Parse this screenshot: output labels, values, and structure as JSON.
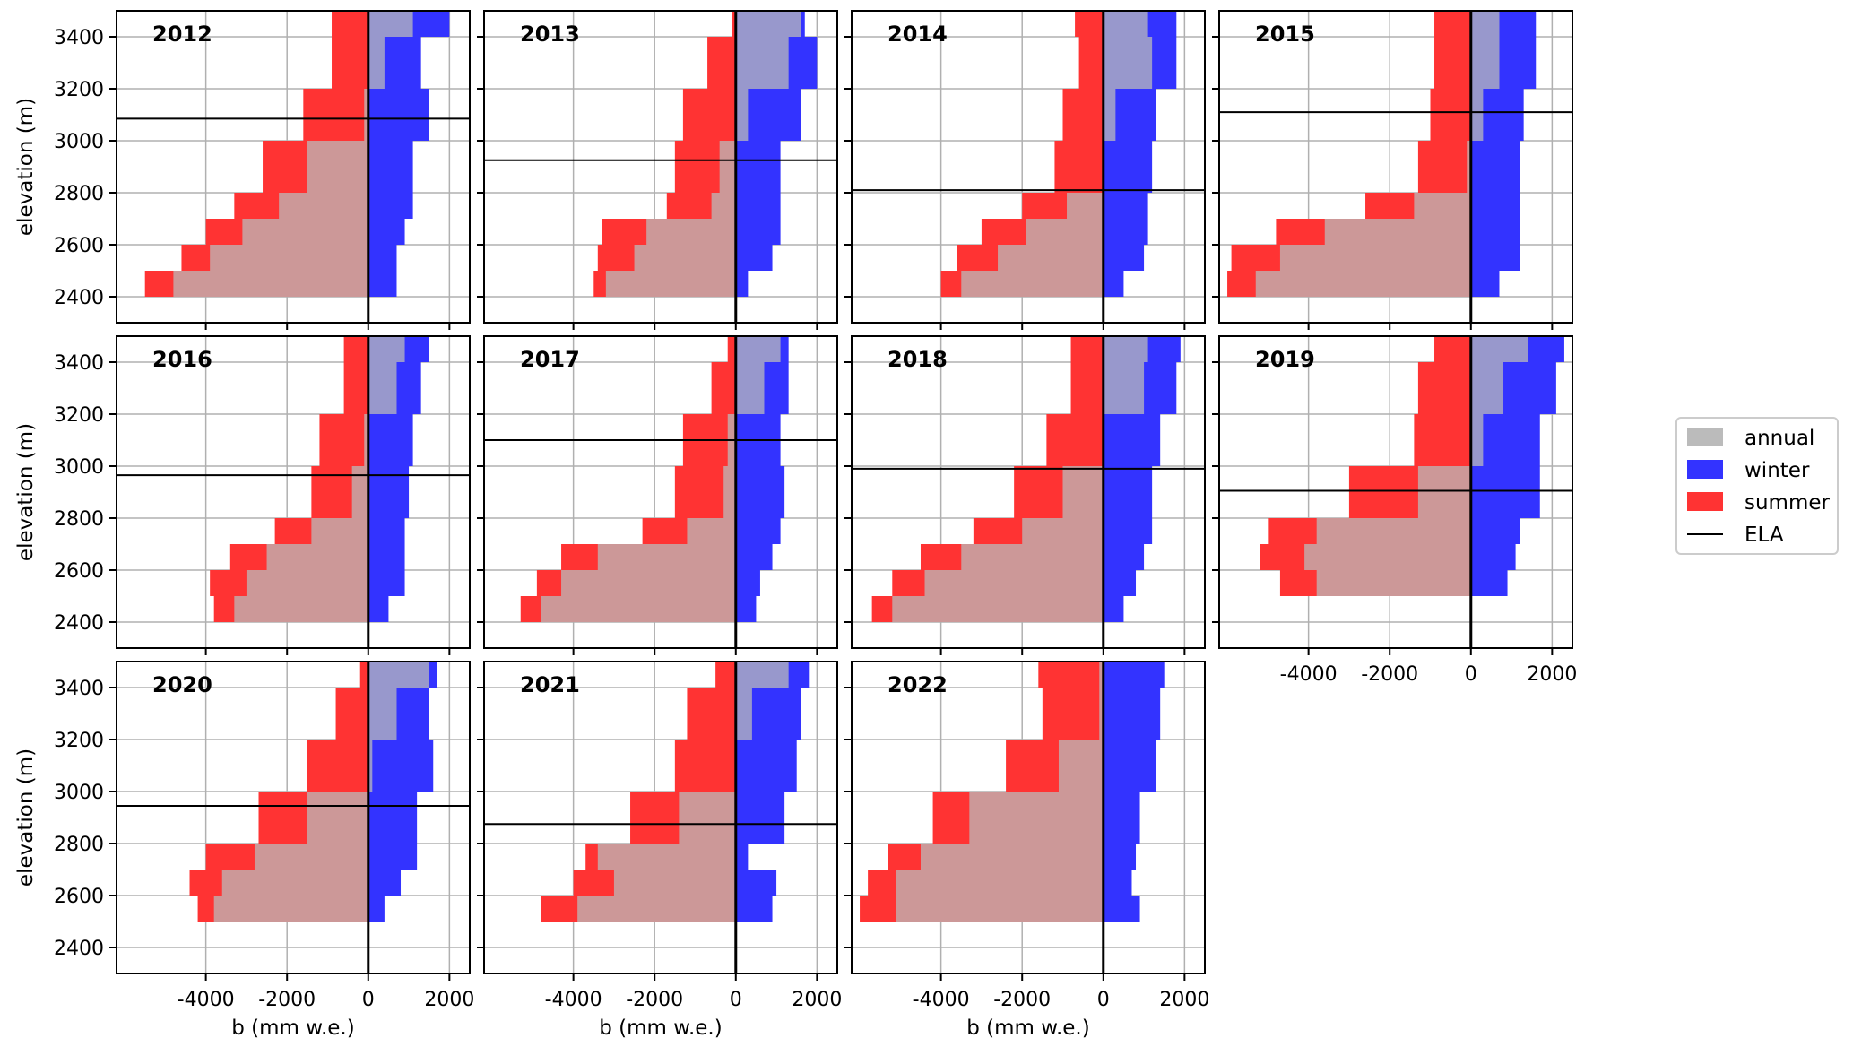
{
  "chart_data": {
    "type": "bar",
    "description_kind": "small multiples of horizontal bar profiles",
    "xlabel": "b (mm w.e.)",
    "ylabel": "elevation (m)",
    "xlim": [
      -6200,
      2500
    ],
    "ylim": [
      2300,
      3500
    ],
    "xticks": [
      -4000,
      -2000,
      0,
      2000
    ],
    "xtick_labels": [
      "-4000",
      "-2000",
      "0",
      "2000"
    ],
    "yticks": [
      2400,
      2600,
      2800,
      3000,
      3200,
      3400
    ],
    "ytick_labels": [
      "2400",
      "2600",
      "2800",
      "3000",
      "3200",
      "3400"
    ],
    "grid": true,
    "legend_position": "right-outside",
    "legend": [
      {
        "key": "annual",
        "label": "annual"
      },
      {
        "key": "winter",
        "label": "winter"
      },
      {
        "key": "summer",
        "label": "summer"
      },
      {
        "key": "ela",
        "label": "ELA"
      }
    ],
    "colors": {
      "summer": "#ff3333",
      "winter": "#3333ff",
      "annual": "#bbbbbb",
      "ela": "#000000"
    },
    "panels": [
      {
        "year": "2012",
        "ela": 3085,
        "elevations": [
          2400,
          2500,
          2600,
          2700,
          2800,
          3000,
          3200,
          3400
        ],
        "winter": [
          700,
          700,
          900,
          1100,
          1100,
          1500,
          1300,
          2000
        ],
        "summer": [
          -5500,
          -4600,
          -4000,
          -3300,
          -2600,
          -1600,
          -900,
          -900
        ]
      },
      {
        "year": "2013",
        "ela": 2925,
        "elevations": [
          2400,
          2500,
          2600,
          2700,
          2800,
          3000,
          3200,
          3400
        ],
        "winter": [
          300,
          900,
          1100,
          1100,
          1100,
          1600,
          2000,
          1700
        ],
        "summer": [
          -3500,
          -3400,
          -3300,
          -1700,
          -1500,
          -1300,
          -700,
          -100
        ]
      },
      {
        "year": "2014",
        "ela": 2810,
        "elevations": [
          2400,
          2500,
          2600,
          2700,
          2800,
          3000,
          3200,
          3400
        ],
        "winter": [
          500,
          1000,
          1100,
          1100,
          1200,
          1300,
          1800,
          1800
        ],
        "summer": [
          -4000,
          -3600,
          -3000,
          -2000,
          -1200,
          -1000,
          -600,
          -700
        ]
      },
      {
        "year": "2015",
        "ela": 3110,
        "elevations": [
          2400,
          2500,
          2600,
          2700,
          2800,
          3000,
          3200,
          3400
        ],
        "winter": [
          700,
          1200,
          1200,
          1200,
          1200,
          1300,
          1600,
          1600
        ],
        "summer": [
          -6000,
          -5900,
          -4800,
          -2600,
          -1300,
          -1000,
          -900,
          -900
        ]
      },
      {
        "year": "2016",
        "ela": 2965,
        "elevations": [
          2400,
          2500,
          2600,
          2700,
          2800,
          3000,
          3200,
          3400
        ],
        "winter": [
          500,
          900,
          900,
          900,
          1000,
          1100,
          1300,
          1500
        ],
        "summer": [
          -3800,
          -3900,
          -3400,
          -2300,
          -1400,
          -1200,
          -600,
          -600
        ]
      },
      {
        "year": "2017",
        "ela": 3100,
        "elevations": [
          2400,
          2500,
          2600,
          2700,
          2800,
          3000,
          3200,
          3400
        ],
        "winter": [
          500,
          600,
          900,
          1100,
          1200,
          1100,
          1300,
          1300
        ],
        "summer": [
          -5300,
          -4900,
          -4300,
          -2300,
          -1500,
          -1300,
          -600,
          -200
        ]
      },
      {
        "year": "2018",
        "ela": 2990,
        "elevations": [
          2400,
          2500,
          2600,
          2700,
          2800,
          3000,
          3200,
          3400
        ],
        "winter": [
          500,
          800,
          1000,
          1200,
          1200,
          1400,
          1800,
          1900
        ],
        "summer": [
          -5700,
          -5200,
          -4500,
          -3200,
          -2200,
          -1400,
          -800,
          -800
        ]
      },
      {
        "year": "2019",
        "ela": 2905,
        "elevations": [
          2500,
          2600,
          2700,
          2800,
          3000,
          3200,
          3400
        ],
        "winter": [
          900,
          1100,
          1200,
          1700,
          1700,
          2100,
          2300
        ],
        "summer": [
          -4700,
          -5200,
          -5000,
          -3000,
          -1400,
          -1300,
          -900
        ]
      },
      {
        "year": "2020",
        "ela": 2945,
        "elevations": [
          2500,
          2600,
          2700,
          2800,
          3000,
          3200,
          3400
        ],
        "winter": [
          400,
          800,
          1200,
          1200,
          1600,
          1500,
          1700
        ],
        "summer": [
          -4200,
          -4400,
          -4000,
          -2700,
          -1500,
          -800,
          -200
        ]
      },
      {
        "year": "2021",
        "ela": 2875,
        "elevations": [
          2500,
          2600,
          2700,
          2800,
          3000,
          3200,
          3400
        ],
        "winter": [
          900,
          1000,
          300,
          1200,
          1500,
          1600,
          1800
        ],
        "summer": [
          -4800,
          -4000,
          -3700,
          -2600,
          -1500,
          -1200,
          -500
        ]
      },
      {
        "year": "2022",
        "ela": null,
        "elevations": [
          2500,
          2600,
          2700,
          2800,
          3000,
          3200,
          3400
        ],
        "winter": [
          900,
          700,
          800,
          900,
          1300,
          1400,
          1500
        ],
        "summer": [
          -6000,
          -5800,
          -5300,
          -4200,
          -2400,
          -1500,
          -1600
        ]
      }
    ]
  }
}
